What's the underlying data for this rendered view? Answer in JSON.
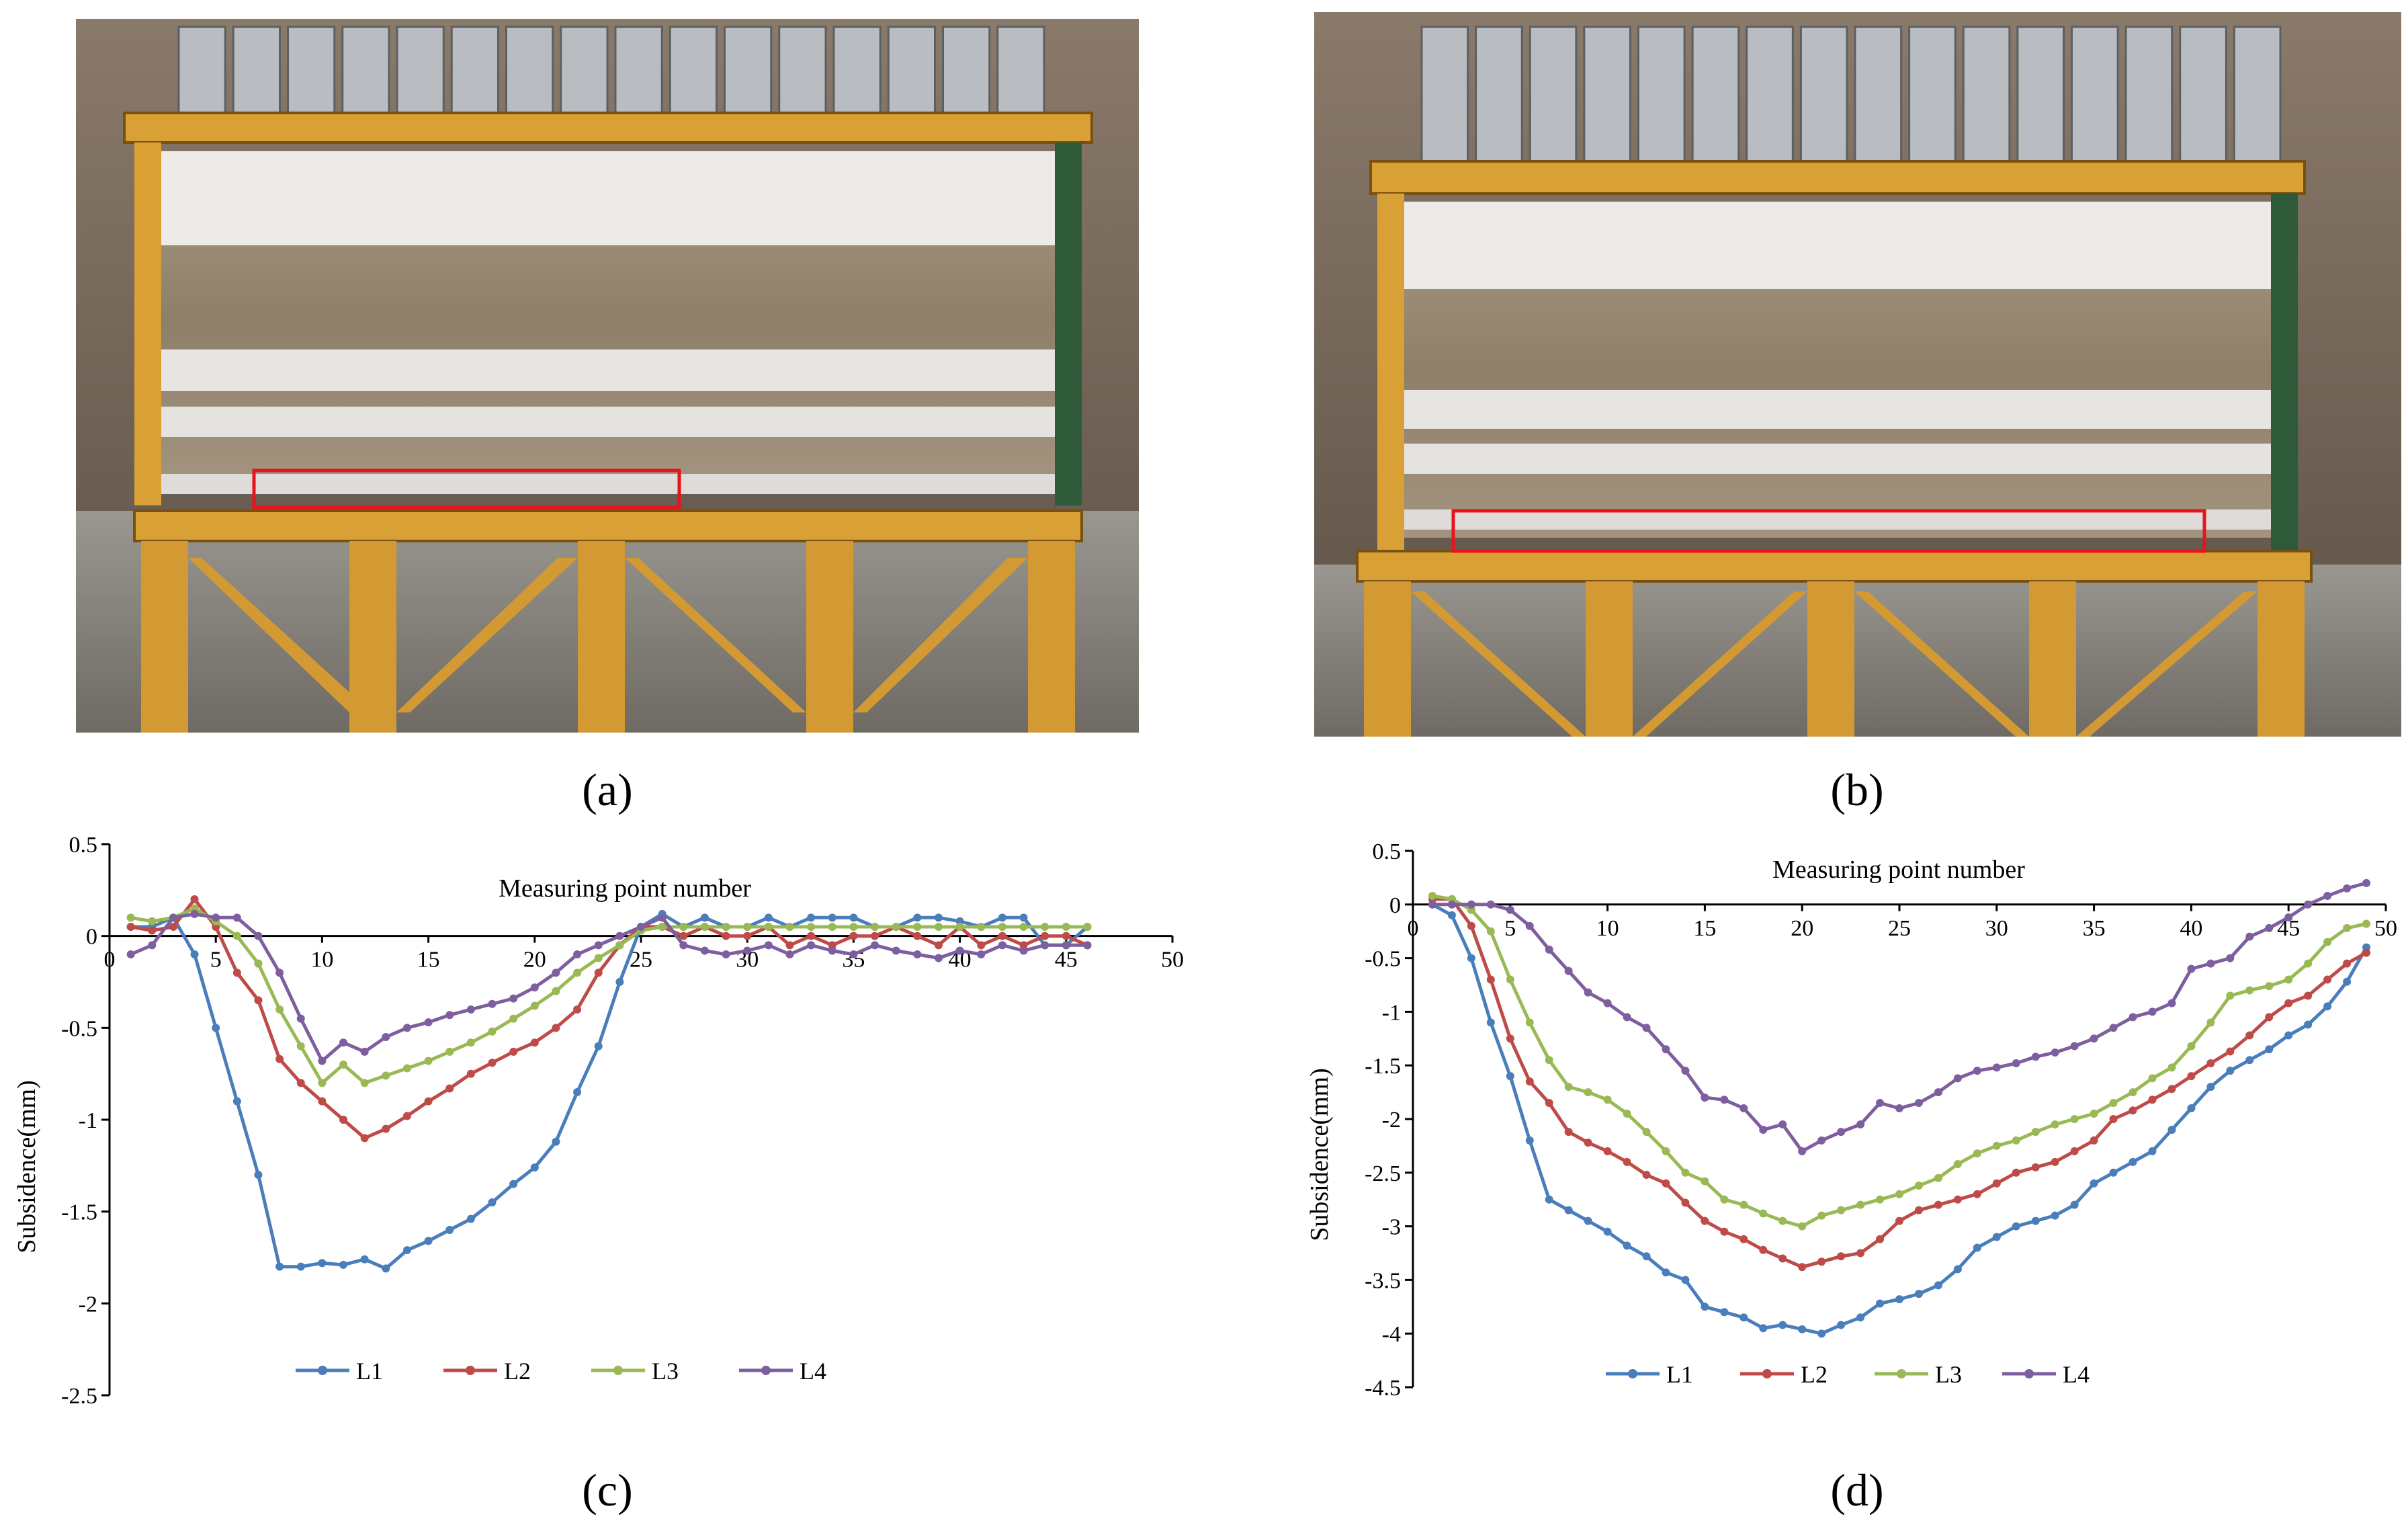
{
  "panels": {
    "a": {
      "caption": "(a)"
    },
    "b": {
      "caption": "(b)"
    },
    "c": {
      "caption": "(c)"
    },
    "d": {
      "caption": "(d)"
    }
  },
  "colors": {
    "L1": "#4a7ebb",
    "L2": "#be4b48",
    "L3": "#98b954",
    "L4": "#7d5fa0",
    "highlight": "#e8141c"
  },
  "chart_data": [
    {
      "panel": "c",
      "type": "line",
      "xlabel": "Measuring point number",
      "ylabel": "Subsidence(mm)",
      "xlim": [
        0,
        50
      ],
      "ylim": [
        -2.5,
        0.5
      ],
      "xticks": [
        0,
        5,
        10,
        15,
        20,
        25,
        30,
        35,
        40,
        45,
        50
      ],
      "yticks": [
        0.5,
        0,
        -0.5,
        -1,
        -1.5,
        -2,
        -2.5
      ],
      "ytick_labels": [
        "0.5",
        "0",
        "-0.5",
        "-1",
        "-1.5",
        "-2",
        "-2.5"
      ],
      "legend_position": "bottom",
      "x": [
        1,
        2,
        3,
        4,
        5,
        6,
        7,
        8,
        9,
        10,
        11,
        12,
        13,
        14,
        15,
        16,
        17,
        18,
        19,
        20,
        21,
        22,
        23,
        24,
        25,
        26,
        27,
        28,
        29,
        30,
        31,
        32,
        33,
        34,
        35,
        36,
        37,
        38,
        39,
        40,
        41,
        42,
        43,
        44,
        45,
        46
      ],
      "series": [
        {
          "name": "L1",
          "values": [
            0.05,
            0.05,
            0.1,
            -0.1,
            -0.5,
            -0.9,
            -1.3,
            -1.8,
            -1.8,
            -1.78,
            -1.79,
            -1.76,
            -1.81,
            -1.71,
            -1.66,
            -1.6,
            -1.54,
            -1.45,
            -1.35,
            -1.26,
            -1.12,
            -0.85,
            -0.6,
            -0.25,
            0.05,
            0.12,
            0.05,
            0.1,
            0.05,
            0.05,
            0.1,
            0.05,
            0.1,
            0.1,
            0.1,
            0.05,
            0.05,
            0.1,
            0.1,
            0.08,
            0.05,
            0.1,
            0.1,
            -0.05,
            -0.05,
            0.05
          ]
        },
        {
          "name": "L2",
          "values": [
            0.05,
            0.03,
            0.05,
            0.2,
            0.05,
            -0.2,
            -0.35,
            -0.67,
            -0.8,
            -0.9,
            -1.0,
            -1.1,
            -1.05,
            -0.98,
            -0.9,
            -0.83,
            -0.75,
            -0.69,
            -0.63,
            -0.58,
            -0.5,
            -0.4,
            -0.2,
            -0.05,
            0.05,
            0.05,
            0.0,
            0.05,
            0.0,
            0.0,
            0.05,
            -0.05,
            0.0,
            -0.05,
            0.0,
            0.0,
            0.05,
            0.0,
            -0.05,
            0.05,
            -0.05,
            0.0,
            -0.05,
            0.0,
            0.0,
            -0.05
          ]
        },
        {
          "name": "L3",
          "values": [
            0.1,
            0.08,
            0.1,
            0.15,
            0.08,
            0.0,
            -0.15,
            -0.4,
            -0.6,
            -0.8,
            -0.7,
            -0.8,
            -0.76,
            -0.72,
            -0.68,
            -0.63,
            -0.58,
            -0.52,
            -0.45,
            -0.38,
            -0.3,
            -0.2,
            -0.12,
            -0.05,
            0.03,
            0.05,
            0.05,
            0.05,
            0.05,
            0.05,
            0.05,
            0.05,
            0.05,
            0.05,
            0.05,
            0.05,
            0.05,
            0.05,
            0.05,
            0.05,
            0.05,
            0.05,
            0.05,
            0.05,
            0.05,
            0.05
          ]
        },
        {
          "name": "L4",
          "values": [
            -0.1,
            -0.05,
            0.1,
            0.12,
            0.1,
            0.1,
            0.0,
            -0.2,
            -0.45,
            -0.68,
            -0.58,
            -0.63,
            -0.55,
            -0.5,
            -0.47,
            -0.43,
            -0.4,
            -0.37,
            -0.34,
            -0.28,
            -0.2,
            -0.1,
            -0.05,
            0.0,
            0.05,
            0.1,
            -0.05,
            -0.08,
            -0.1,
            -0.08,
            -0.05,
            -0.1,
            -0.05,
            -0.08,
            -0.1,
            -0.05,
            -0.08,
            -0.1,
            -0.12,
            -0.08,
            -0.1,
            -0.05,
            -0.08,
            -0.05,
            -0.05,
            -0.05
          ]
        }
      ]
    },
    {
      "panel": "d",
      "type": "line",
      "xlabel": "Measuring point number",
      "ylabel": "Subsidence(mm)",
      "xlim": [
        0,
        50
      ],
      "ylim": [
        -4.5,
        0.5
      ],
      "xticks": [
        0,
        5,
        10,
        15,
        20,
        25,
        30,
        35,
        40,
        45,
        50
      ],
      "yticks": [
        0.5,
        0,
        -0.5,
        -1,
        -1.5,
        -2,
        -2.5,
        -3,
        -3.5,
        -4,
        -4.5
      ],
      "ytick_labels": [
        "0.5",
        "0",
        "-0.5",
        "-1",
        "-1.5",
        "-2",
        "-2.5",
        "-3",
        "-3.5",
        "-4",
        "-4.5"
      ],
      "legend_position": "bottom",
      "x": [
        1,
        2,
        3,
        4,
        5,
        6,
        7,
        8,
        9,
        10,
        11,
        12,
        13,
        14,
        15,
        16,
        17,
        18,
        19,
        20,
        21,
        22,
        23,
        24,
        25,
        26,
        27,
        28,
        29,
        30,
        31,
        32,
        33,
        34,
        35,
        36,
        37,
        38,
        39,
        40,
        41,
        42,
        43,
        44,
        45,
        46,
        47,
        48,
        49
      ],
      "series": [
        {
          "name": "L1",
          "values": [
            0.0,
            -0.1,
            -0.5,
            -1.1,
            -1.6,
            -2.2,
            -2.75,
            -2.85,
            -2.95,
            -3.05,
            -3.18,
            -3.28,
            -3.43,
            -3.5,
            -3.75,
            -3.8,
            -3.85,
            -3.95,
            -3.92,
            -3.96,
            -4.0,
            -3.92,
            -3.85,
            -3.72,
            -3.68,
            -3.63,
            -3.55,
            -3.4,
            -3.2,
            -3.1,
            -3.0,
            -2.95,
            -2.9,
            -2.8,
            -2.6,
            -2.5,
            -2.4,
            -2.3,
            -2.1,
            -1.9,
            -1.7,
            -1.55,
            -1.45,
            -1.35,
            -1.22,
            -1.12,
            -0.95,
            -0.72,
            -0.4
          ]
        },
        {
          "name": "L2",
          "values": [
            0.05,
            0.05,
            -0.2,
            -0.7,
            -1.25,
            -1.65,
            -1.85,
            -2.12,
            -2.22,
            -2.3,
            -2.4,
            -2.52,
            -2.6,
            -2.78,
            -2.95,
            -3.05,
            -3.12,
            -3.22,
            -3.3,
            -3.38,
            -3.33,
            -3.28,
            -3.25,
            -3.12,
            -2.95,
            -2.85,
            -2.8,
            -2.75,
            -2.7,
            -2.6,
            -2.5,
            -2.45,
            -2.4,
            -2.3,
            -2.2,
            -2.0,
            -1.92,
            -1.82,
            -1.72,
            -1.6,
            -1.48,
            -1.37,
            -1.22,
            -1.05,
            -0.92,
            -0.85,
            -0.7,
            -0.55,
            -0.45
          ]
        },
        {
          "name": "L3",
          "values": [
            0.08,
            0.05,
            -0.05,
            -0.25,
            -0.7,
            -1.1,
            -1.45,
            -1.7,
            -1.75,
            -1.82,
            -1.95,
            -2.12,
            -2.3,
            -2.5,
            -2.58,
            -2.75,
            -2.8,
            -2.88,
            -2.95,
            -3.0,
            -2.9,
            -2.85,
            -2.8,
            -2.75,
            -2.7,
            -2.62,
            -2.55,
            -2.42,
            -2.32,
            -2.25,
            -2.2,
            -2.12,
            -2.05,
            -2.0,
            -1.95,
            -1.85,
            -1.75,
            -1.62,
            -1.52,
            -1.32,
            -1.1,
            -0.85,
            -0.8,
            -0.76,
            -0.7,
            -0.55,
            -0.35,
            -0.22,
            -0.18
          ]
        },
        {
          "name": "L4",
          "values": [
            0.0,
            0.0,
            0.0,
            0.0,
            -0.05,
            -0.2,
            -0.42,
            -0.62,
            -0.82,
            -0.92,
            -1.05,
            -1.15,
            -1.35,
            -1.55,
            -1.8,
            -1.82,
            -1.9,
            -2.1,
            -2.05,
            -2.3,
            -2.2,
            -2.12,
            -2.05,
            -1.85,
            -1.9,
            -1.85,
            -1.75,
            -1.62,
            -1.55,
            -1.52,
            -1.48,
            -1.42,
            -1.38,
            -1.32,
            -1.25,
            -1.15,
            -1.05,
            -1.0,
            -0.92,
            -0.6,
            -0.55,
            -0.5,
            -0.3,
            -0.22,
            -0.12,
            0.0,
            0.08,
            0.15,
            0.2
          ]
        }
      ]
    }
  ]
}
